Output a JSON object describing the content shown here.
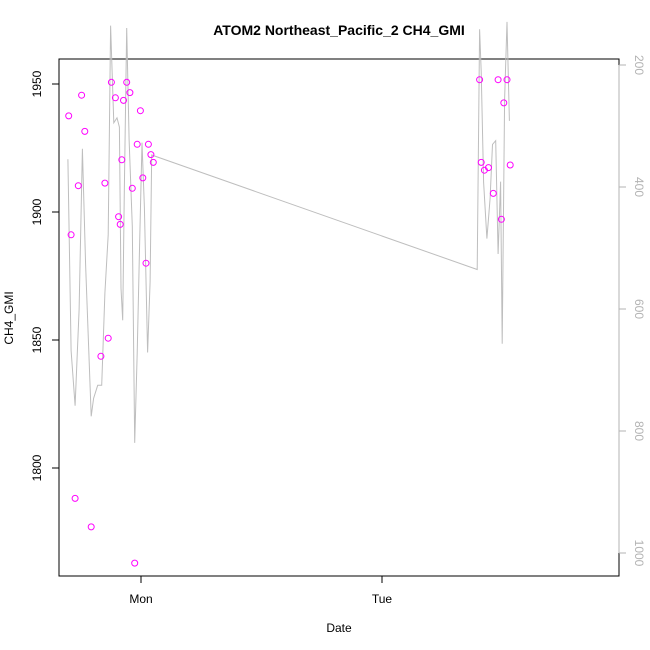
{
  "chart_data": {
    "type": "scatter",
    "title": "ATOM2 Northeast_Pacific_2 CH4_GMI",
    "xlabel": "Date",
    "ylabel": "CH4_GMI",
    "x_ticks": [
      "Mon",
      "Tue"
    ],
    "y_ticks": [
      "1800",
      "1850",
      "1900",
      "1950"
    ],
    "y2_ticks": [
      "200",
      "400",
      "600",
      "800",
      "1000"
    ],
    "colors": {
      "points": "#ff00ff",
      "line": "#bebebe",
      "right_axis": "#b3b3b3",
      "axis": "#000000"
    },
    "ylim": [
      1760,
      1960
    ],
    "y2lim": [
      1025,
      190
    ],
    "xlim_hours": [
      -16.3,
      53.2
    ],
    "x_unit": "hours relative to Mon 00:00",
    "series": [
      {
        "kind": "points",
        "x": [
          -15.1,
          -14.8,
          -14.3,
          -13.9,
          -13.5,
          -13.1,
          -12.3,
          -11.1,
          -10.6,
          -10.2,
          -9.8,
          -9.3,
          -8.9,
          -8.7,
          -8.5,
          -8.3,
          -7.9,
          -7.5,
          -7.2,
          -6.9,
          -6.6,
          -6.2,
          -5.9,
          -5.5,
          -5.2,
          -4.9,
          -4.6,
          35.9,
          36.1,
          36.5,
          37.0,
          37.6,
          38.2,
          38.6,
          38.9,
          39.3,
          39.7
        ],
        "y": [
          1938,
          1892,
          1790,
          1911,
          1946,
          1932,
          1779,
          1845,
          1912,
          1852,
          1951,
          1945,
          1899,
          1896,
          1921,
          1944,
          1951,
          1947,
          1910,
          1765,
          1927,
          1940,
          1914,
          1881,
          1927,
          1923,
          1920,
          1952,
          1920,
          1917,
          1918,
          1908,
          1952,
          1898,
          1943,
          1952,
          1919
        ]
      },
      {
        "kind": "line",
        "x": [
          -15.2,
          -14.8,
          -14.3,
          -13.8,
          -13.4,
          -13.0,
          -12.3,
          -12.0,
          -11.5,
          -11.0,
          -10.6,
          -10.2,
          -9.9,
          -9.5,
          -9.1,
          -8.8,
          -8.6,
          -8.4,
          -8.2,
          -7.9,
          -7.6,
          -7.2,
          -6.9,
          -6.6,
          -6.3,
          -6.0,
          -5.7,
          -5.3,
          -5.0,
          -4.8,
          35.6,
          35.9,
          36.1,
          36.4,
          36.8,
          37.2,
          37.5,
          37.9,
          38.2,
          38.5,
          38.7,
          39.0,
          39.3,
          39.6
        ],
        "y2": [
          352,
          661,
          750,
          595,
          335,
          522,
          767,
          738,
          717,
          717,
          568,
          474,
          136,
          293,
          285,
          300,
          560,
          612,
          405,
          140,
          320,
          460,
          810,
          665,
          490,
          325,
          430,
          664,
          550,
          345,
          530,
          142,
          210,
          389,
          480,
          415,
          328,
          322,
          505,
          388,
          650,
          255,
          130,
          290
        ]
      }
    ]
  }
}
